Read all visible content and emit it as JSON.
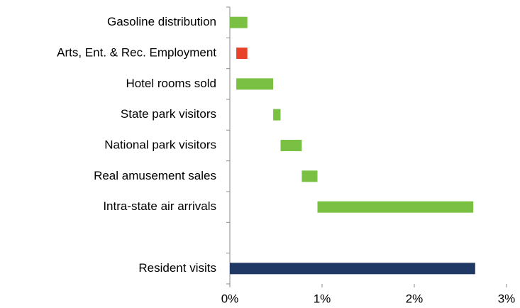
{
  "chart_data": {
    "type": "waterfall",
    "orientation": "horizontal",
    "categories": [
      "Gasoline distribution",
      "Arts, Ent. & Rec. Employment",
      "Hotel rooms sold",
      "State park visitors",
      "National park visitors",
      "Real amusement sales",
      "Intra-state air arrivals",
      null,
      "Resident visits"
    ],
    "values": [
      0.19,
      -0.12,
      0.4,
      0.08,
      0.23,
      0.17,
      1.69,
      null,
      2.66
    ],
    "colors": [
      "#7ac143",
      "#e8432a",
      "#7ac143",
      "#7ac143",
      "#7ac143",
      "#7ac143",
      "#7ac143",
      null,
      "#1f3864"
    ],
    "xlim": [
      0,
      3
    ],
    "xticks": [
      {
        "value": 0,
        "label": "0%"
      },
      {
        "value": 1,
        "label": "1%"
      },
      {
        "value": 2,
        "label": "2%"
      },
      {
        "value": 3,
        "label": "3%"
      }
    ]
  }
}
